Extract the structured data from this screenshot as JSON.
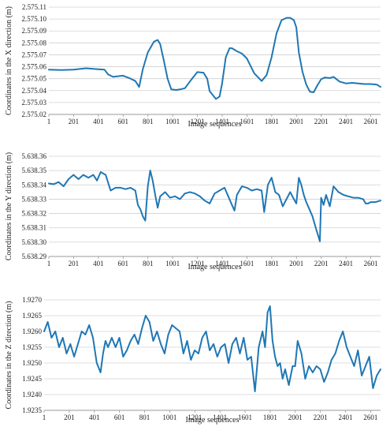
{
  "colors": {
    "line": "#1f77b4",
    "grid": "#d0d0d0",
    "axis": "#999999"
  },
  "chart_data": [
    {
      "type": "line",
      "xlabel": "Image sequences",
      "ylabel": "Coordinates in the X direction (m)",
      "x_tick_labels": [
        "1",
        "201",
        "401",
        "601",
        "801",
        "1001",
        "1201",
        "1401",
        "1601",
        "1801",
        "2001",
        "2201",
        "2401",
        "2601"
      ],
      "y_tick_labels": [
        "2.575.02",
        "2.575.03",
        "2.575.04",
        "2.575.05",
        "2.575.06",
        "2.575.07",
        "2.575.08",
        "2.575.09",
        "2.575.10",
        "2.575.11"
      ],
      "xlim": [
        1,
        2680
      ],
      "ylim": [
        2575.02,
        2575.11
      ],
      "grid": true,
      "series": [
        {
          "x": [
            1,
            100,
            200,
            300,
            400,
            450,
            480,
            520,
            560,
            600,
            650,
            700,
            730,
            760,
            800,
            850,
            880,
            900,
            930,
            960,
            990,
            1030,
            1060,
            1100,
            1150,
            1200,
            1250,
            1280,
            1300,
            1350,
            1380,
            1400,
            1430,
            1460,
            1480,
            1520,
            1560,
            1600,
            1660,
            1720,
            1760,
            1800,
            1840,
            1880,
            1920,
            1950,
            1980,
            2000,
            2020,
            2050,
            2080,
            2110,
            2140,
            2170,
            2200,
            2230,
            2270,
            2300,
            2350,
            2400,
            2450,
            2500,
            2550,
            2600,
            2650,
            2680
          ],
          "y": [
            2575.0575,
            2575.0572,
            2575.0575,
            2575.0587,
            2575.0579,
            2575.0575,
            2575.0535,
            2575.0515,
            2575.052,
            2575.0525,
            2575.0505,
            2575.048,
            2575.043,
            2575.058,
            2575.072,
            2575.081,
            2575.0825,
            2575.079,
            2575.065,
            2575.05,
            2575.041,
            2575.0405,
            2575.041,
            2575.042,
            2575.049,
            2575.0555,
            2575.055,
            2575.05,
            2575.0395,
            2575.033,
            2575.035,
            2575.046,
            2575.068,
            2575.0755,
            2575.0755,
            2575.073,
            2575.071,
            2575.067,
            2575.0545,
            2575.048,
            2575.053,
            2575.068,
            2575.088,
            2575.099,
            2575.101,
            2575.101,
            2575.099,
            2575.093,
            2575.072,
            2575.0555,
            2575.045,
            2575.039,
            2575.0385,
            2575.0445,
            2575.0495,
            2575.051,
            2575.0505,
            2575.0515,
            2575.0475,
            2575.046,
            2575.0465,
            2575.046,
            2575.0455,
            2575.0455,
            2575.045,
            2575.043
          ]
        }
      ]
    },
    {
      "type": "line",
      "xlabel": "Image sequences",
      "ylabel": "Coordinates in the Y direction (m)",
      "x_tick_labels": [
        "1",
        "201",
        "401",
        "601",
        "801",
        "1001",
        "1201",
        "1401",
        "1601",
        "1801",
        "2001",
        "2201",
        "2401",
        "2601"
      ],
      "y_tick_labels": [
        "5.638.29",
        "5.638.30",
        "5.638.31",
        "5.638.32",
        "5.638.33",
        "5.638.34",
        "5.638.35",
        "5.638.36"
      ],
      "xlim": [
        1,
        2680
      ],
      "ylim": [
        5638.29,
        5638.36
      ],
      "grid": true,
      "series": [
        {
          "x": [
            1,
            40,
            80,
            120,
            160,
            200,
            240,
            280,
            320,
            360,
            390,
            420,
            460,
            500,
            540,
            580,
            620,
            660,
            700,
            720,
            740,
            760,
            780,
            800,
            820,
            840,
            860,
            880,
            900,
            940,
            980,
            1020,
            1060,
            1100,
            1140,
            1180,
            1220,
            1260,
            1300,
            1340,
            1380,
            1420,
            1450,
            1480,
            1500,
            1520,
            1560,
            1600,
            1640,
            1680,
            1720,
            1740,
            1770,
            1800,
            1830,
            1860,
            1890,
            1920,
            1950,
            1980,
            2000,
            2020,
            2040,
            2060,
            2080,
            2100,
            2130,
            2160,
            2180,
            2190,
            2200,
            2220,
            2240,
            2270,
            2300,
            2320,
            2340,
            2380,
            2420,
            2460,
            2500,
            2540,
            2560,
            2580,
            2600,
            2640,
            2680
          ],
          "y": [
            5638.341,
            5638.3405,
            5638.342,
            5638.339,
            5638.344,
            5638.347,
            5638.344,
            5638.347,
            5638.345,
            5638.347,
            5638.343,
            5638.349,
            5638.347,
            5638.336,
            5638.338,
            5638.338,
            5638.337,
            5638.338,
            5638.336,
            5638.326,
            5638.323,
            5638.318,
            5638.315,
            5638.339,
            5638.35,
            5638.343,
            5638.333,
            5638.324,
            5638.332,
            5638.335,
            5638.331,
            5638.332,
            5638.33,
            5638.334,
            5638.335,
            5638.334,
            5638.332,
            5638.329,
            5638.327,
            5638.334,
            5638.336,
            5638.338,
            5638.332,
            5638.326,
            5638.322,
            5638.333,
            5638.339,
            5638.338,
            5638.336,
            5638.337,
            5638.336,
            5638.321,
            5638.34,
            5638.345,
            5638.335,
            5638.333,
            5638.325,
            5638.33,
            5638.335,
            5638.33,
            5638.327,
            5638.345,
            5638.34,
            5638.333,
            5638.328,
            5638.324,
            5638.318,
            5638.309,
            5638.3035,
            5638.3005,
            5638.331,
            5638.326,
            5638.333,
            5638.325,
            5638.339,
            5638.337,
            5638.335,
            5638.333,
            5638.332,
            5638.331,
            5638.331,
            5638.33,
            5638.327,
            5638.327,
            5638.328,
            5638.328,
            5638.329
          ]
        }
      ]
    },
    {
      "type": "line",
      "xlabel": "Image sequences",
      "ylabel": "Coordinates in the Z direction (m)",
      "x_tick_labels": [
        "1",
        "201",
        "401",
        "601",
        "801",
        "1001",
        "1201",
        "1401",
        "1601",
        "1801",
        "2001",
        "2201",
        "2401",
        "2601"
      ],
      "y_tick_labels": [
        "1.9235",
        "1.9240",
        "1.9245",
        "1.9250",
        "1.9255",
        "1.9260",
        "1.9265",
        "1.9270"
      ],
      "xlim": [
        1,
        2680
      ],
      "ylim": [
        1.9235,
        1.927
      ],
      "grid": true,
      "series": [
        {
          "x": [
            1,
            30,
            60,
            90,
            120,
            150,
            180,
            210,
            240,
            270,
            300,
            330,
            360,
            390,
            420,
            450,
            470,
            490,
            510,
            540,
            570,
            600,
            630,
            660,
            690,
            720,
            750,
            780,
            810,
            840,
            870,
            900,
            930,
            960,
            990,
            1020,
            1050,
            1080,
            1110,
            1140,
            1170,
            1200,
            1230,
            1260,
            1290,
            1320,
            1350,
            1380,
            1410,
            1440,
            1470,
            1500,
            1530,
            1560,
            1590,
            1620,
            1650,
            1680,
            1710,
            1740,
            1760,
            1780,
            1800,
            1820,
            1840,
            1860,
            1880,
            1900,
            1920,
            1950,
            1980,
            2000,
            2020,
            2050,
            2080,
            2110,
            2140,
            2170,
            2200,
            2230,
            2260,
            2290,
            2320,
            2350,
            2380,
            2410,
            2440,
            2470,
            2500,
            2530,
            2560,
            2590,
            2620,
            2650,
            2680
          ],
          "y": [
            1.926,
            1.9263,
            1.9258,
            1.926,
            1.9255,
            1.9258,
            1.9253,
            1.9256,
            1.9252,
            1.9256,
            1.926,
            1.9259,
            1.9262,
            1.9258,
            1.925,
            1.9247,
            1.9253,
            1.9257,
            1.9255,
            1.9258,
            1.9255,
            1.9258,
            1.9252,
            1.9254,
            1.9257,
            1.9259,
            1.9256,
            1.9261,
            1.9265,
            1.9263,
            1.9257,
            1.926,
            1.9256,
            1.9253,
            1.9259,
            1.9262,
            1.9261,
            1.926,
            1.9253,
            1.9257,
            1.9251,
            1.9254,
            1.9253,
            1.9258,
            1.926,
            1.9254,
            1.9256,
            1.9252,
            1.9255,
            1.9256,
            1.925,
            1.9256,
            1.9258,
            1.9253,
            1.9258,
            1.9251,
            1.9252,
            1.9241,
            1.9255,
            1.926,
            1.9255,
            1.9266,
            1.9268,
            1.9257,
            1.9252,
            1.9249,
            1.925,
            1.9245,
            1.9248,
            1.9243,
            1.9249,
            1.9249,
            1.9257,
            1.9253,
            1.9245,
            1.9249,
            1.9247,
            1.9249,
            1.9248,
            1.9244,
            1.9247,
            1.9251,
            1.9253,
            1.9257,
            1.926,
            1.9255,
            1.9252,
            1.9249,
            1.9254,
            1.9246,
            1.9249,
            1.9252,
            1.9242,
            1.9246,
            1.9248
          ]
        }
      ]
    }
  ]
}
